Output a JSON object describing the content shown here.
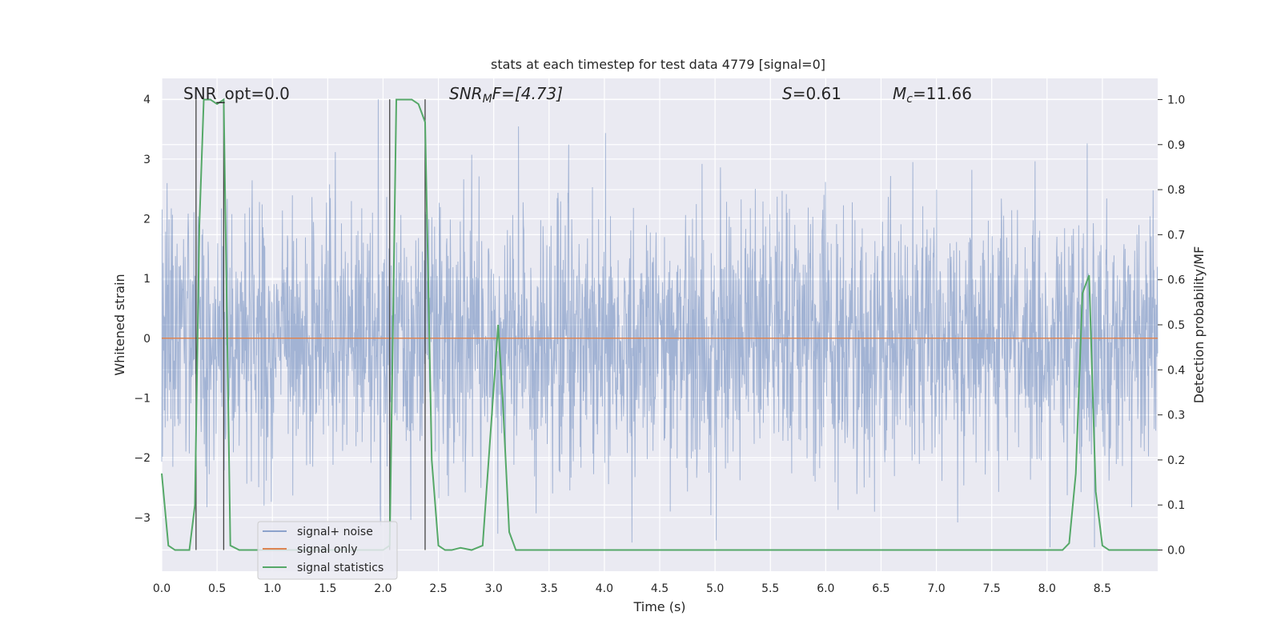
{
  "chart_data": {
    "type": "line",
    "title": "stats at each timestep for test data 4779 [signal=0]",
    "xlabel": "Time (s)",
    "ylabel": "Whitened strain",
    "ylabel_right": "Detection probability/MF",
    "xlim": [
      0.0,
      9.0
    ],
    "ylim": [
      -3.9,
      4.35
    ],
    "ylim_right": [
      -0.047,
      1.047
    ],
    "xticks": [
      "0.0",
      "0.5",
      "1.0",
      "1.5",
      "2.0",
      "2.5",
      "3.0",
      "3.5",
      "4.0",
      "4.5",
      "5.0",
      "5.5",
      "6.0",
      "6.5",
      "7.0",
      "7.5",
      "8.0",
      "8.5"
    ],
    "yticks": [
      "−3",
      "−2",
      "−1",
      "0",
      "1",
      "2",
      "3",
      "4"
    ],
    "yticks_right": [
      "0.0",
      "0.1",
      "0.2",
      "0.3",
      "0.4",
      "0.5",
      "0.6",
      "0.7",
      "0.8",
      "0.9",
      "1.0"
    ],
    "annotations": {
      "snr_opt": "SNR_opt=0.0",
      "snr_mf_base": "SNR",
      "snr_mf_sub": "M",
      "snr_mf_rest": "F=[4.73]",
      "s_base": "S",
      "s_rest": "=0.61",
      "mc_base": "M",
      "mc_sub": "c",
      "mc_rest": "=11.66"
    },
    "vlines_x": [
      0.31,
      0.56,
      2.06,
      2.38
    ],
    "legend_position": "lower-left",
    "colors": {
      "noise": "#4c72b0",
      "signal": "#dd8452",
      "stats": "#55a868",
      "background": "#eaeaf2",
      "grid": "#ffffff",
      "vline": "#444444"
    },
    "noise_description_range": [
      -3.5,
      4.0
    ],
    "series": [
      {
        "name": "signal+ noise",
        "role": "noise"
      },
      {
        "name": "signal only",
        "role": "signal",
        "x": [
          0.0,
          9.0
        ],
        "y": [
          0.0,
          0.0
        ]
      },
      {
        "name": "signal statistics",
        "role": "stats",
        "axis": "right",
        "x": [
          0.0,
          0.06,
          0.12,
          0.18,
          0.25,
          0.3,
          0.34,
          0.38,
          0.44,
          0.5,
          0.56,
          0.62,
          0.7,
          0.8,
          1.0,
          1.5,
          2.0,
          2.06,
          2.12,
          2.2,
          2.26,
          2.32,
          2.38,
          2.44,
          2.5,
          2.56,
          2.62,
          2.7,
          2.8,
          2.9,
          2.96,
          3.0,
          3.04,
          3.08,
          3.14,
          3.2,
          3.3,
          3.5,
          4.0,
          5.0,
          6.0,
          7.0,
          8.0,
          8.14,
          8.2,
          8.26,
          8.32,
          8.38,
          8.44,
          8.5,
          8.56,
          8.62,
          8.7,
          8.8,
          9.0
        ],
        "y": [
          0.17,
          0.01,
          0.0,
          0.0,
          0.0,
          0.1,
          0.72,
          1.0,
          1.0,
          0.99,
          1.0,
          0.01,
          0.0,
          0.0,
          0.0,
          0.0,
          0.0,
          0.01,
          1.0,
          1.0,
          1.0,
          0.99,
          0.95,
          0.2,
          0.01,
          0.0,
          0.0,
          0.005,
          0.0,
          0.01,
          0.22,
          0.36,
          0.5,
          0.34,
          0.04,
          0.0,
          0.0,
          0.0,
          0.0,
          0.0,
          0.0,
          0.0,
          0.0,
          0.0,
          0.015,
          0.17,
          0.57,
          0.61,
          0.13,
          0.01,
          0.0,
          0.0,
          0.0,
          0.0,
          0.0
        ]
      }
    ]
  }
}
